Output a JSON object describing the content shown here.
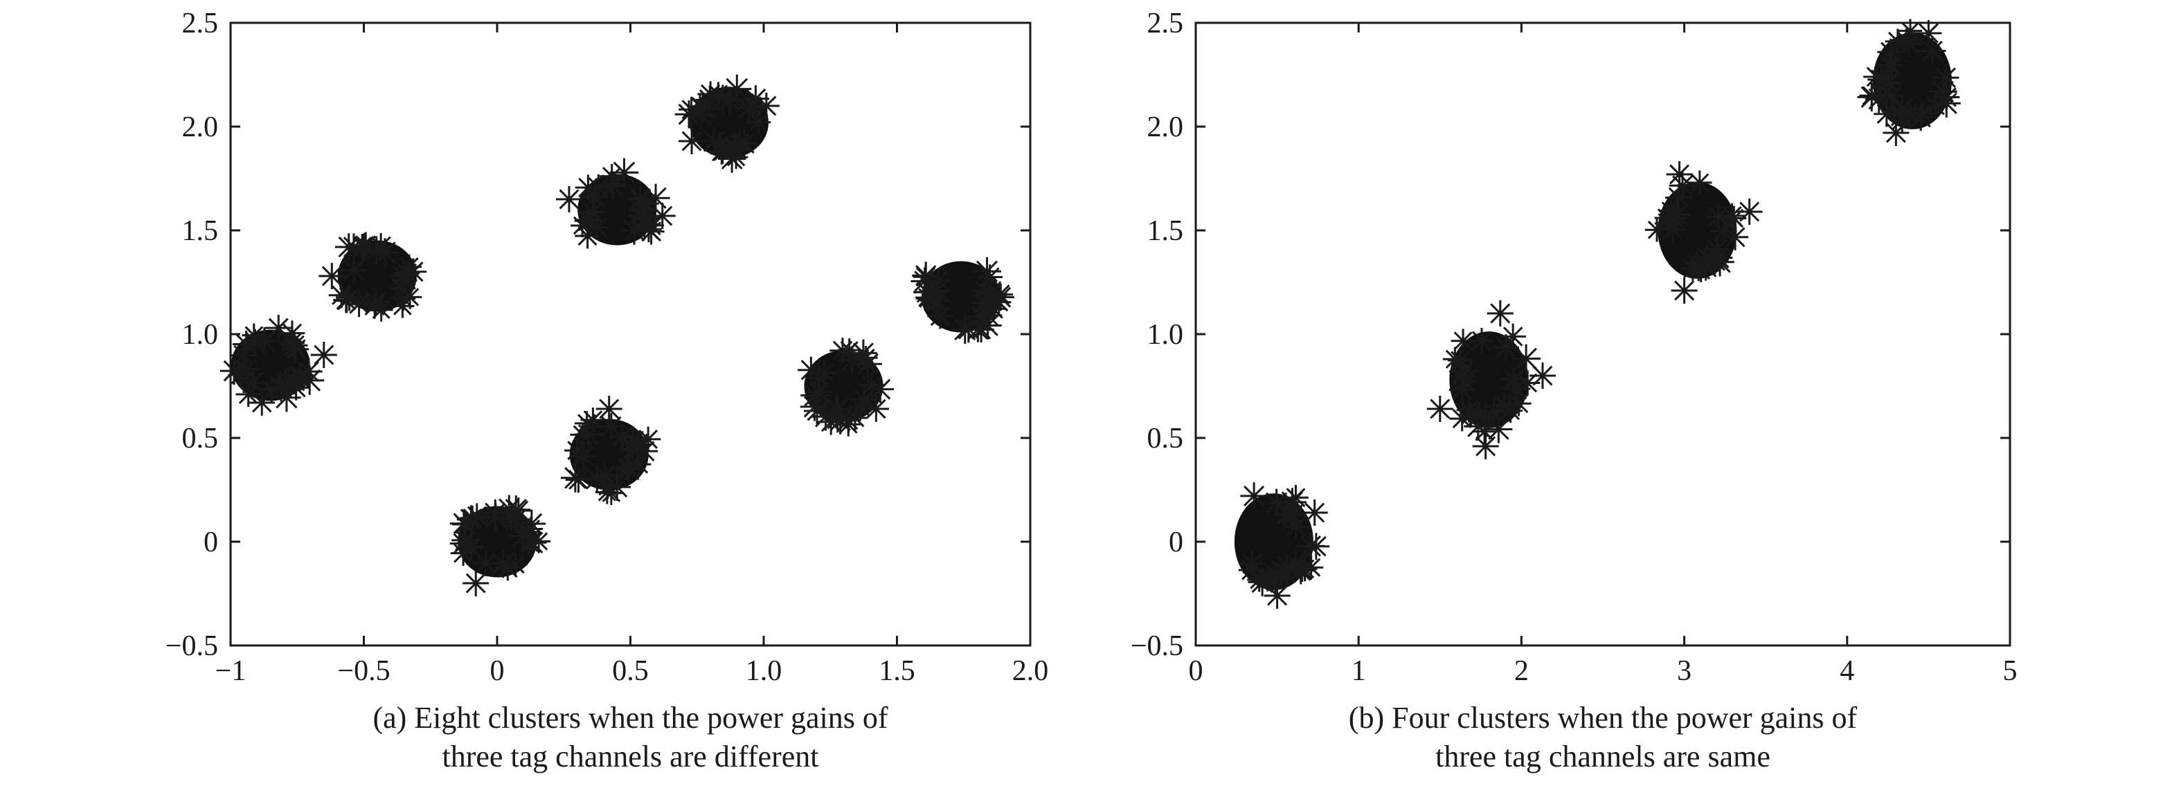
{
  "chart_data": [
    {
      "type": "scatter",
      "marker": "asterisk",
      "color": "#111111",
      "caption_lines": [
        "(a) Eight clusters when the power gains of",
        "three tag channels are different"
      ],
      "xlim": [
        -1,
        2
      ],
      "ylim": [
        -0.5,
        2.5
      ],
      "xticks": [
        -1,
        -0.5,
        0,
        0.5,
        1,
        1.5,
        2
      ],
      "xtick_labels": [
        "−1",
        "−0.5",
        "0",
        "0.5",
        "1.0",
        "1.5",
        "2.0"
      ],
      "yticks": [
        -0.5,
        0,
        0.5,
        1,
        1.5,
        2,
        2.5
      ],
      "ytick_labels": [
        "−0.5",
        "0",
        "0.5",
        "1.0",
        "1.5",
        "2.0",
        "2.5"
      ],
      "clusters": [
        {
          "x": -0.85,
          "y": 0.85
        },
        {
          "x": -0.45,
          "y": 1.28
        },
        {
          "x": 0.0,
          "y": 0.0
        },
        {
          "x": 0.42,
          "y": 0.42
        },
        {
          "x": 0.45,
          "y": 1.6
        },
        {
          "x": 0.87,
          "y": 2.02
        },
        {
          "x": 1.3,
          "y": 0.75
        },
        {
          "x": 1.74,
          "y": 1.18
        }
      ],
      "outliers": [
        {
          "x": -0.82,
          "y": 1.03
        },
        {
          "x": -0.65,
          "y": 0.9
        },
        {
          "x": -0.5,
          "y": 1.42
        },
        {
          "x": -0.62,
          "y": 1.28
        },
        {
          "x": 0.08,
          "y": 0.15
        },
        {
          "x": -0.08,
          "y": -0.2
        },
        {
          "x": 0.42,
          "y": 0.64
        },
        {
          "x": 0.27,
          "y": 1.65
        },
        {
          "x": 0.62,
          "y": 1.57
        },
        {
          "x": 0.73,
          "y": 1.93
        },
        {
          "x": 1.01,
          "y": 2.1
        },
        {
          "x": 1.2,
          "y": 0.63
        },
        {
          "x": 1.85,
          "y": 1.2
        }
      ]
    },
    {
      "type": "scatter",
      "marker": "asterisk",
      "color": "#111111",
      "caption_lines": [
        "(b) Four clusters when the power gains of",
        "three tag channels are same"
      ],
      "xlim": [
        0,
        5
      ],
      "ylim": [
        -0.5,
        2.5
      ],
      "xticks": [
        0,
        1,
        2,
        3,
        4,
        5
      ],
      "xtick_labels": [
        "0",
        "1",
        "2",
        "3",
        "4",
        "5"
      ],
      "yticks": [
        -0.5,
        0,
        0.5,
        1,
        1.5,
        2,
        2.5
      ],
      "ytick_labels": [
        "−0.5",
        "0",
        "0.5",
        "1.0",
        "1.5",
        "2.0",
        "2.5"
      ],
      "clusters": [
        {
          "x": 0.48,
          "y": 0.0
        },
        {
          "x": 1.8,
          "y": 0.78
        },
        {
          "x": 3.08,
          "y": 1.5
        },
        {
          "x": 4.4,
          "y": 2.22
        }
      ],
      "outliers": [
        {
          "x": 0.73,
          "y": 0.14
        },
        {
          "x": 0.5,
          "y": -0.26
        },
        {
          "x": 1.5,
          "y": 0.64
        },
        {
          "x": 1.87,
          "y": 1.1
        },
        {
          "x": 1.78,
          "y": 0.46
        },
        {
          "x": 2.13,
          "y": 0.8
        },
        {
          "x": 3.4,
          "y": 1.59
        },
        {
          "x": 3.0,
          "y": 1.21
        },
        {
          "x": 2.97,
          "y": 1.77
        },
        {
          "x": 4.3,
          "y": 1.97
        },
        {
          "x": 4.5,
          "y": 2.45
        },
        {
          "x": 4.18,
          "y": 2.24
        }
      ]
    }
  ]
}
